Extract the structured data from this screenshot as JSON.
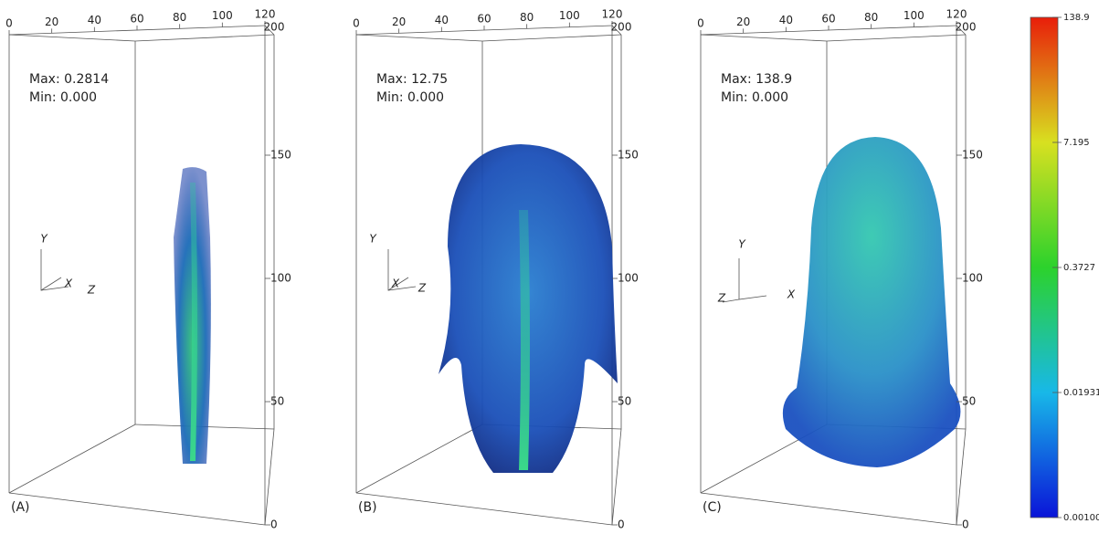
{
  "panels": [
    {
      "label": "(A)",
      "max": "Max: 0.2814",
      "min": "Min: 0.000",
      "x_ticks": [
        0,
        20,
        40,
        60,
        80,
        100,
        120
      ],
      "depth_tick": 200,
      "y_ticks": [
        0,
        50,
        100,
        150
      ],
      "triad": [
        "Y",
        "X",
        "Z"
      ]
    },
    {
      "label": "(B)",
      "max": "Max: 12.75",
      "min": "Min: 0.000",
      "x_ticks": [
        0,
        20,
        40,
        60,
        80,
        100,
        120
      ],
      "depth_tick": 200,
      "y_ticks": [
        0,
        50,
        100,
        150
      ],
      "triad": [
        "Y",
        "X",
        "Z"
      ]
    },
    {
      "label": "(C)",
      "max": "Max: 138.9",
      "min": "Min: 0.000",
      "x_ticks": [
        0,
        20,
        40,
        60,
        80,
        100,
        120
      ],
      "depth_tick": 200,
      "y_ticks": [
        0,
        50,
        100,
        150
      ],
      "triad": [
        "Y",
        "Z",
        "X"
      ]
    }
  ],
  "colorbar": {
    "scale": "log",
    "lim": [
      0.001,
      138.9
    ],
    "ticks": [
      {
        "value": 0.001,
        "label": "0.00100"
      },
      0.01931,
      0.3727,
      7.195,
      138.9
    ]
  }
}
